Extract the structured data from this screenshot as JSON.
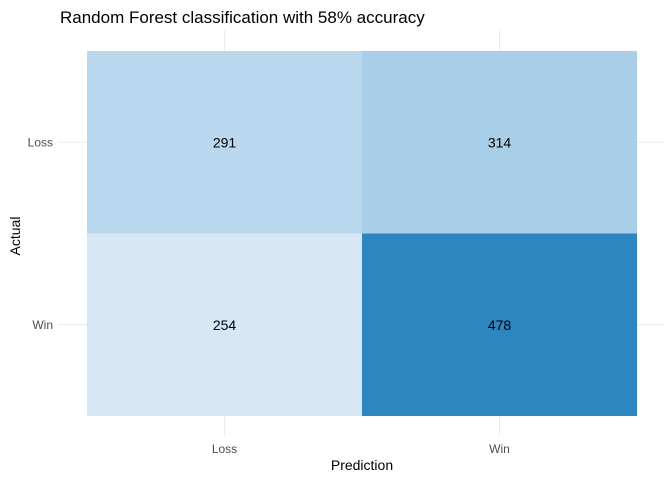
{
  "chart_data": {
    "type": "heatmap",
    "title": "Random Forest classification with 58% accuracy",
    "xlabel": "Prediction",
    "ylabel": "Actual",
    "x_categories": [
      "Loss",
      "Win"
    ],
    "y_categories": [
      "Loss",
      "Win"
    ],
    "cells": [
      {
        "actual": "Loss",
        "prediction": "Loss",
        "value": 291
      },
      {
        "actual": "Loss",
        "prediction": "Win",
        "value": 314
      },
      {
        "actual": "Win",
        "prediction": "Loss",
        "value": 254
      },
      {
        "actual": "Win",
        "prediction": "Win",
        "value": 478
      }
    ],
    "color_low": "#d6e8f6",
    "color_high": "#2e86c1",
    "grid": true,
    "legend": "none"
  }
}
